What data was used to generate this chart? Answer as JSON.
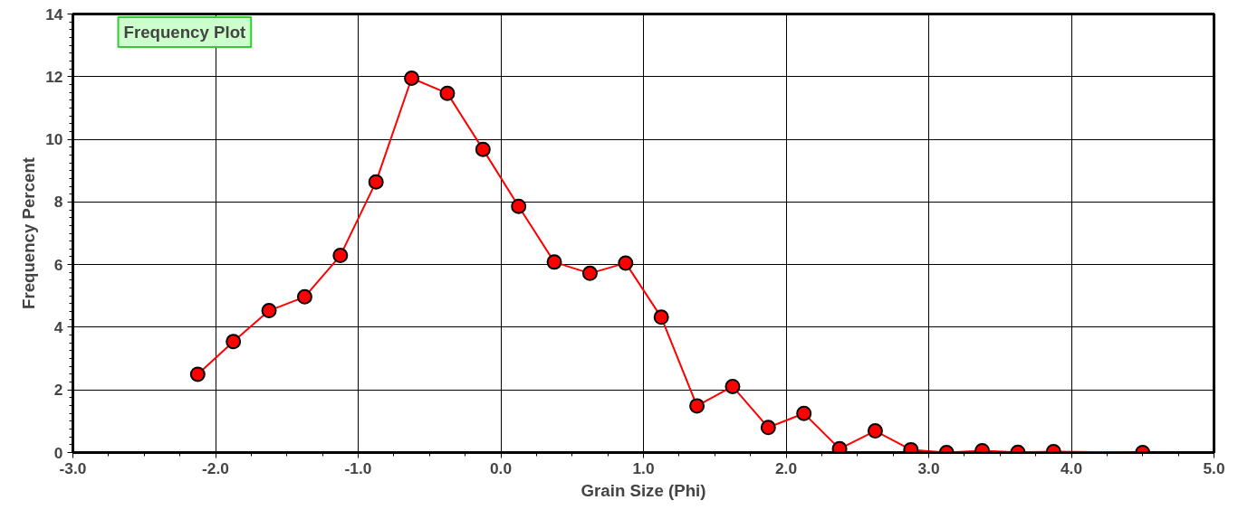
{
  "chart_data": {
    "type": "line",
    "title": "Frequency Plot",
    "xlabel": "Grain Size (Phi)",
    "ylabel": "Frequency Percent",
    "x": [
      -2.125,
      -1.875,
      -1.625,
      -1.375,
      -1.125,
      -0.875,
      -0.625,
      -0.375,
      -0.125,
      0.125,
      0.375,
      0.625,
      0.875,
      1.125,
      1.375,
      1.625,
      1.875,
      2.125,
      2.375,
      2.625,
      2.875,
      3.125,
      3.375,
      3.625,
      3.875,
      4.5
    ],
    "series": [
      {
        "color": "#ff0000",
        "values": [
          2.5,
          3.54,
          4.53,
          4.97,
          6.29,
          8.64,
          11.95,
          11.47,
          9.68,
          7.86,
          6.08,
          5.72,
          6.05,
          4.32,
          1.49,
          2.11,
          0.8,
          1.25,
          0.12,
          0.69,
          0.09,
          0.0,
          0.06,
          0.01,
          0.03,
          0.0
        ]
      }
    ],
    "xlim": [
      -3,
      5
    ],
    "xticks": [
      {
        "value": -3,
        "label": "-3.0"
      },
      {
        "value": -2,
        "label": "-2.0"
      },
      {
        "value": -1,
        "label": "-1.0"
      },
      {
        "value": 0,
        "label": "0.0"
      },
      {
        "value": 1,
        "label": "1.0"
      },
      {
        "value": 2,
        "label": "2.0"
      },
      {
        "value": 3,
        "label": "3.0"
      },
      {
        "value": 4,
        "label": "4.0"
      },
      {
        "value": 5,
        "label": "5.0"
      }
    ],
    "ylim": [
      0,
      14
    ],
    "yticks": [
      0,
      2,
      4,
      6,
      8,
      10,
      12,
      14
    ],
    "grid": true,
    "marker": "circle",
    "line_style": "solid"
  }
}
